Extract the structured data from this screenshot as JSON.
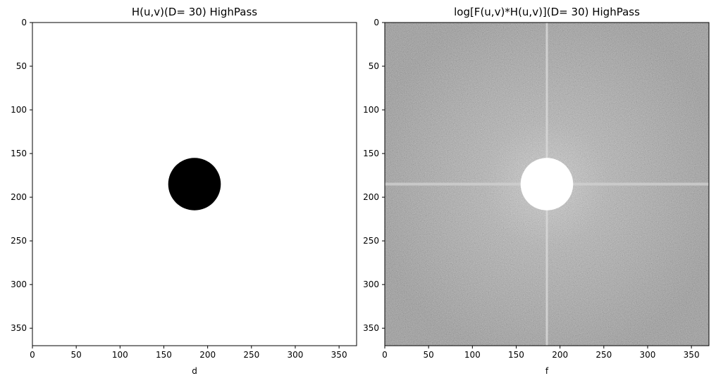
{
  "chart_data": [
    {
      "type": "heatmap",
      "title": "H(u,v)(D= 30) HighPass",
      "xlabel": "d",
      "ylabel": "",
      "xlim": [
        0,
        370
      ],
      "ylim": [
        370,
        0
      ],
      "xticks": [
        0,
        50,
        100,
        150,
        200,
        250,
        300,
        350
      ],
      "yticks": [
        0,
        50,
        100,
        150,
        200,
        250,
        300,
        350
      ],
      "image_content": {
        "colormap": "gray",
        "background_value": 1,
        "circle": {
          "center_x": 185,
          "center_y": 185,
          "radius": 30,
          "value": 0
        }
      }
    },
    {
      "type": "heatmap",
      "title": "log[F(u,v)*H(u,v)](D= 30) HighPass",
      "xlabel": "f",
      "ylabel": "",
      "xlim": [
        0,
        370
      ],
      "ylim": [
        370,
        0
      ],
      "xticks": [
        0,
        50,
        100,
        150,
        200,
        250,
        300,
        350
      ],
      "yticks": [
        0,
        50,
        100,
        150,
        200,
        250,
        300,
        350
      ],
      "image_content": {
        "colormap": "gray",
        "texture": "log-magnitude spectrum noise",
        "cross_lines_through_center": true,
        "circle": {
          "center_x": 185,
          "center_y": 185,
          "radius": 30,
          "value": 1
        }
      }
    }
  ]
}
